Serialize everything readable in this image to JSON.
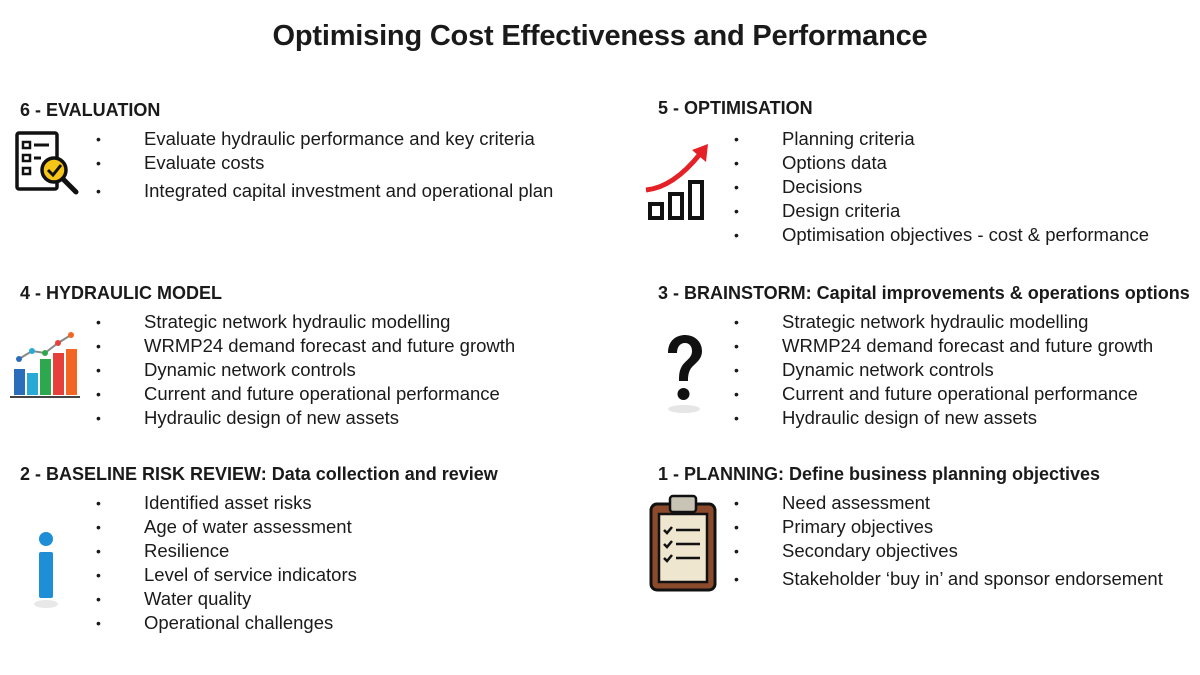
{
  "title": "Optimising Cost Effectiveness and Performance",
  "colors": {
    "text": "#1a1a1a",
    "arrow_red": "#e32126",
    "bars_black": "#111111",
    "info_blue": "#1e8fd6",
    "chart_green": "#2ea84f",
    "chart_orange": "#f26522",
    "chart_red": "#e5403a",
    "chart_blue": "#2a6ebb",
    "check_yellow": "#f5c518",
    "clipboard_brown": "#8b4a2b",
    "clipboard_paper": "#efe6d0"
  },
  "sections": {
    "s6": {
      "heading": "6 - EVALUATION",
      "icon": "evaluation-checklist-magnifier-icon",
      "items": [
        "Evaluate hydraulic performance and key criteria",
        "Evaluate costs",
        "Integrated capital investment and operational plan"
      ]
    },
    "s5": {
      "heading": "5 - OPTIMISATION",
      "icon": "growth-bar-chart-arrow-icon",
      "items": [
        "Planning criteria",
        "Options data",
        "Decisions",
        "Design criteria",
        "Optimisation objectives - cost & performance"
      ]
    },
    "s4": {
      "heading": "4 - HYDRAULIC MODEL",
      "icon": "colored-bar-line-chart-icon",
      "items": [
        "Strategic network hydraulic modelling",
        "WRMP24 demand forecast and future growth",
        "Dynamic network controls",
        "Current and future operational performance",
        "Hydraulic design of new assets"
      ]
    },
    "s3": {
      "heading": "3 - BRAINSTORM: Capital improvements & operations options",
      "icon": "question-mark-icon",
      "items": [
        "Strategic network hydraulic modelling",
        "WRMP24 demand forecast and future growth",
        "Dynamic network controls",
        "Current and future operational performance",
        "Hydraulic design of new assets"
      ]
    },
    "s2": {
      "heading": "2 - BASELINE RISK REVIEW: Data collection and review",
      "icon": "info-icon",
      "items": [
        "Identified asset risks",
        "Age of water assessment",
        "Resilience",
        "Level of service indicators",
        "Water quality",
        "Operational challenges"
      ]
    },
    "s1": {
      "heading": "1 - PLANNING: Define business planning objectives",
      "icon": "clipboard-checklist-icon",
      "items": [
        "Need assessment",
        "Primary objectives",
        "Secondary objectives",
        "Stakeholder ‘buy in’ and sponsor endorsement"
      ]
    }
  },
  "bullet_char": "•"
}
